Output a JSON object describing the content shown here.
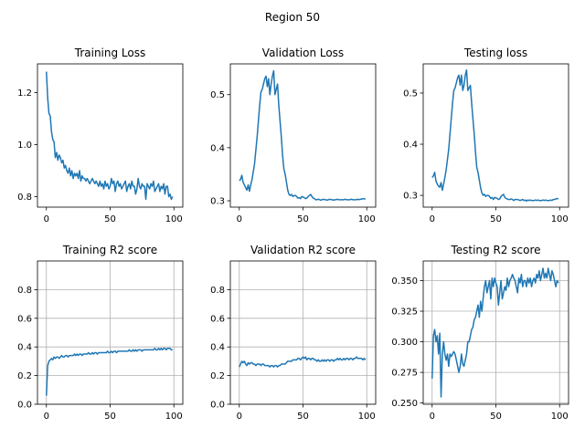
{
  "figure": {
    "suptitle": "Region 50",
    "line_color": "#1f77b4"
  },
  "chart_data": [
    {
      "type": "line",
      "title": "Training Loss",
      "xlabel": "",
      "ylabel": "",
      "xlim": [
        -7,
        107
      ],
      "ylim": [
        0.76,
        1.31
      ],
      "xticks": [
        0,
        50,
        100
      ],
      "yticks": [
        0.8,
        1.0,
        1.2
      ],
      "ytick_labels": [
        "0.8",
        "1.0",
        "1.2"
      ],
      "grid": false,
      "series": [
        {
          "values": [
            1.28,
            1.18,
            1.12,
            1.11,
            1.05,
            1.02,
            1.01,
            0.95,
            0.97,
            0.94,
            0.96,
            0.95,
            0.93,
            0.94,
            0.91,
            0.92,
            0.9,
            0.89,
            0.91,
            0.88,
            0.9,
            0.87,
            0.89,
            0.88,
            0.89,
            0.87,
            0.9,
            0.86,
            0.88,
            0.87,
            0.87,
            0.86,
            0.87,
            0.86,
            0.85,
            0.86,
            0.87,
            0.86,
            0.85,
            0.86,
            0.85,
            0.84,
            0.86,
            0.84,
            0.85,
            0.83,
            0.86,
            0.84,
            0.85,
            0.83,
            0.84,
            0.87,
            0.85,
            0.86,
            0.82,
            0.85,
            0.86,
            0.84,
            0.85,
            0.83,
            0.84,
            0.85,
            0.86,
            0.82,
            0.84,
            0.85,
            0.83,
            0.86,
            0.84,
            0.84,
            0.81,
            0.83,
            0.87,
            0.84,
            0.83,
            0.85,
            0.84,
            0.84,
            0.79,
            0.85,
            0.84,
            0.83,
            0.85,
            0.84,
            0.86,
            0.82,
            0.83,
            0.84,
            0.85,
            0.82,
            0.84,
            0.83,
            0.85,
            0.81,
            0.84,
            0.84,
            0.8,
            0.81,
            0.79,
            0.8
          ]
        }
      ]
    },
    {
      "type": "line",
      "title": "Validation Loss",
      "xlabel": "",
      "ylabel": "",
      "xlim": [
        -7,
        107
      ],
      "ylim": [
        0.288,
        0.558
      ],
      "xticks": [
        0,
        50,
        100
      ],
      "yticks": [
        0.3,
        0.4,
        0.5
      ],
      "ytick_labels": [
        "0.3",
        "0.4",
        "0.5"
      ],
      "grid": false,
      "series": [
        {
          "values": [
            0.338,
            0.34,
            0.348,
            0.335,
            0.33,
            0.325,
            0.32,
            0.33,
            0.318,
            0.33,
            0.34,
            0.355,
            0.37,
            0.395,
            0.42,
            0.45,
            0.48,
            0.505,
            0.51,
            0.52,
            0.53,
            0.535,
            0.515,
            0.53,
            0.5,
            0.52,
            0.535,
            0.545,
            0.5,
            0.51,
            0.52,
            0.48,
            0.45,
            0.42,
            0.385,
            0.36,
            0.35,
            0.335,
            0.32,
            0.312,
            0.31,
            0.312,
            0.308,
            0.31,
            0.31,
            0.308,
            0.305,
            0.306,
            0.304,
            0.308,
            0.307,
            0.306,
            0.304,
            0.305,
            0.308,
            0.31,
            0.312,
            0.308,
            0.305,
            0.304,
            0.302,
            0.302,
            0.303,
            0.302,
            0.301,
            0.302,
            0.303,
            0.302,
            0.302,
            0.301,
            0.302,
            0.303,
            0.302,
            0.302,
            0.301,
            0.302,
            0.302,
            0.303,
            0.302,
            0.302,
            0.302,
            0.302,
            0.302,
            0.303,
            0.302,
            0.302,
            0.302,
            0.302,
            0.303,
            0.302,
            0.302,
            0.302,
            0.302,
            0.303,
            0.302,
            0.303,
            0.303,
            0.304,
            0.304,
            0.303
          ]
        }
      ]
    },
    {
      "type": "line",
      "title": "Testing loss",
      "xlabel": "",
      "ylabel": "",
      "xlim": [
        -7,
        107
      ],
      "ylim": [
        0.277,
        0.557
      ],
      "xticks": [
        0,
        50,
        100
      ],
      "yticks": [
        0.3,
        0.4,
        0.5
      ],
      "ytick_labels": [
        "0.3",
        "0.4",
        "0.5"
      ],
      "grid": false,
      "series": [
        {
          "values": [
            0.335,
            0.338,
            0.345,
            0.328,
            0.322,
            0.318,
            0.316,
            0.325,
            0.31,
            0.322,
            0.335,
            0.35,
            0.37,
            0.39,
            0.42,
            0.45,
            0.48,
            0.505,
            0.51,
            0.52,
            0.53,
            0.535,
            0.515,
            0.535,
            0.505,
            0.515,
            0.535,
            0.545,
            0.505,
            0.51,
            0.515,
            0.48,
            0.45,
            0.42,
            0.385,
            0.355,
            0.345,
            0.33,
            0.315,
            0.305,
            0.3,
            0.302,
            0.298,
            0.3,
            0.3,
            0.298,
            0.294,
            0.296,
            0.292,
            0.296,
            0.295,
            0.294,
            0.292,
            0.293,
            0.298,
            0.3,
            0.302,
            0.296,
            0.294,
            0.293,
            0.292,
            0.292,
            0.293,
            0.292,
            0.29,
            0.292,
            0.292,
            0.292,
            0.291,
            0.29,
            0.291,
            0.292,
            0.29,
            0.291,
            0.289,
            0.291,
            0.29,
            0.291,
            0.29,
            0.29,
            0.29,
            0.291,
            0.29,
            0.291,
            0.29,
            0.29,
            0.29,
            0.291,
            0.29,
            0.291,
            0.29,
            0.29,
            0.29,
            0.291,
            0.29,
            0.292,
            0.292,
            0.293,
            0.294,
            0.293
          ]
        }
      ]
    },
    {
      "type": "line",
      "title": "Training R2 score",
      "xlabel": "",
      "ylabel": "",
      "xlim": [
        -7,
        107
      ],
      "ylim": [
        0.0,
        1.0
      ],
      "xticks": [
        0,
        50,
        100
      ],
      "yticks": [
        0.0,
        0.2,
        0.4,
        0.6,
        0.8
      ],
      "ytick_labels": [
        "0.0",
        "0.2",
        "0.4",
        "0.6",
        "0.8"
      ],
      "grid": true,
      "series": [
        {
          "values": [
            0.06,
            0.27,
            0.3,
            0.31,
            0.32,
            0.31,
            0.33,
            0.32,
            0.33,
            0.33,
            0.32,
            0.33,
            0.34,
            0.33,
            0.33,
            0.34,
            0.34,
            0.33,
            0.34,
            0.34,
            0.34,
            0.34,
            0.35,
            0.34,
            0.35,
            0.34,
            0.35,
            0.35,
            0.34,
            0.35,
            0.35,
            0.35,
            0.35,
            0.36,
            0.35,
            0.35,
            0.36,
            0.35,
            0.36,
            0.36,
            0.35,
            0.36,
            0.36,
            0.36,
            0.36,
            0.36,
            0.36,
            0.36,
            0.37,
            0.36,
            0.36,
            0.37,
            0.36,
            0.37,
            0.37,
            0.36,
            0.37,
            0.37,
            0.37,
            0.37,
            0.37,
            0.37,
            0.37,
            0.37,
            0.37,
            0.38,
            0.37,
            0.37,
            0.38,
            0.37,
            0.38,
            0.37,
            0.38,
            0.38,
            0.38,
            0.37,
            0.38,
            0.38,
            0.38,
            0.38,
            0.38,
            0.38,
            0.38,
            0.38,
            0.38,
            0.39,
            0.38,
            0.38,
            0.39,
            0.38,
            0.39,
            0.38,
            0.39,
            0.39,
            0.38,
            0.39,
            0.39,
            0.39,
            0.38,
            0.38
          ]
        }
      ]
    },
    {
      "type": "line",
      "title": "Validation R2 score",
      "xlabel": "",
      "ylabel": "",
      "xlim": [
        -7,
        107
      ],
      "ylim": [
        0.0,
        1.0
      ],
      "xticks": [
        0,
        50,
        100
      ],
      "yticks": [
        0.0,
        0.2,
        0.4,
        0.6,
        0.8
      ],
      "ytick_labels": [
        "0.0",
        "0.2",
        "0.4",
        "0.6",
        "0.8"
      ],
      "grid": true,
      "series": [
        {
          "values": [
            0.26,
            0.28,
            0.3,
            0.29,
            0.3,
            0.28,
            0.27,
            0.29,
            0.28,
            0.29,
            0.29,
            0.28,
            0.28,
            0.27,
            0.28,
            0.28,
            0.28,
            0.27,
            0.28,
            0.28,
            0.27,
            0.27,
            0.27,
            0.27,
            0.26,
            0.27,
            0.27,
            0.26,
            0.27,
            0.27,
            0.26,
            0.27,
            0.27,
            0.28,
            0.28,
            0.28,
            0.28,
            0.29,
            0.3,
            0.3,
            0.3,
            0.3,
            0.31,
            0.31,
            0.31,
            0.31,
            0.32,
            0.32,
            0.31,
            0.32,
            0.33,
            0.32,
            0.33,
            0.31,
            0.32,
            0.32,
            0.31,
            0.32,
            0.32,
            0.31,
            0.31,
            0.3,
            0.31,
            0.3,
            0.3,
            0.31,
            0.3,
            0.31,
            0.3,
            0.31,
            0.31,
            0.3,
            0.31,
            0.31,
            0.3,
            0.31,
            0.31,
            0.32,
            0.31,
            0.32,
            0.31,
            0.31,
            0.32,
            0.31,
            0.32,
            0.32,
            0.31,
            0.32,
            0.32,
            0.31,
            0.32,
            0.32,
            0.33,
            0.32,
            0.32,
            0.32,
            0.32,
            0.31,
            0.32,
            0.31
          ]
        }
      ]
    },
    {
      "type": "line",
      "title": "Testing R2 score",
      "xlabel": "",
      "ylabel": "",
      "xlim": [
        -7,
        107
      ],
      "ylim": [
        0.249,
        0.366
      ],
      "xticks": [
        0,
        50,
        100
      ],
      "yticks": [
        0.25,
        0.275,
        0.3,
        0.325,
        0.35
      ],
      "ytick_labels": [
        "0.250",
        "0.275",
        "0.300",
        "0.325",
        "0.350"
      ],
      "grid": true,
      "series": [
        {
          "values": [
            0.27,
            0.305,
            0.31,
            0.3,
            0.305,
            0.29,
            0.307,
            0.255,
            0.29,
            0.3,
            0.29,
            0.285,
            0.29,
            0.28,
            0.29,
            0.288,
            0.29,
            0.292,
            0.29,
            0.285,
            0.28,
            0.275,
            0.28,
            0.29,
            0.282,
            0.28,
            0.285,
            0.29,
            0.3,
            0.3,
            0.305,
            0.31,
            0.312,
            0.318,
            0.32,
            0.325,
            0.33,
            0.32,
            0.333,
            0.325,
            0.335,
            0.345,
            0.35,
            0.34,
            0.345,
            0.35,
            0.335,
            0.352,
            0.345,
            0.352,
            0.348,
            0.345,
            0.33,
            0.34,
            0.35,
            0.335,
            0.34,
            0.345,
            0.342,
            0.352,
            0.345,
            0.35,
            0.352,
            0.355,
            0.352,
            0.35,
            0.345,
            0.34,
            0.352,
            0.348,
            0.355,
            0.345,
            0.35,
            0.35,
            0.345,
            0.352,
            0.348,
            0.352,
            0.345,
            0.35,
            0.352,
            0.348,
            0.355,
            0.352,
            0.358,
            0.35,
            0.355,
            0.36,
            0.352,
            0.356,
            0.352,
            0.36,
            0.355,
            0.35,
            0.358,
            0.355,
            0.35,
            0.345,
            0.35,
            0.348
          ]
        }
      ]
    }
  ]
}
